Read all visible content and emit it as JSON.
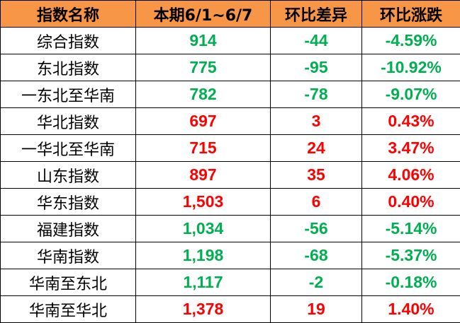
{
  "colors": {
    "header_bg": "#F79646",
    "up": "#FF0000",
    "down": "#00B050"
  },
  "headers": [
    "指数名称",
    "本期6/1~6/7",
    "环比差异",
    "环比涨跌"
  ],
  "rows": [
    {
      "name": "综合指数",
      "value": "914",
      "diff": "-44",
      "pct": "-4.59%",
      "trend": "down"
    },
    {
      "name": "东北指数",
      "value": "775",
      "diff": "-95",
      "pct": "-10.92%",
      "trend": "down"
    },
    {
      "name": "一东北至华南",
      "value": "782",
      "diff": "-78",
      "pct": "-9.07%",
      "trend": "down"
    },
    {
      "name": "华北指数",
      "value": "697",
      "diff": "3",
      "pct": "0.43%",
      "trend": "up"
    },
    {
      "name": "一华北至华南",
      "value": "715",
      "diff": "24",
      "pct": "3.47%",
      "trend": "up"
    },
    {
      "name": "山东指数",
      "value": "897",
      "diff": "35",
      "pct": "4.06%",
      "trend": "up"
    },
    {
      "name": "华东指数",
      "value": "1,503",
      "diff": "6",
      "pct": "0.40%",
      "trend": "up"
    },
    {
      "name": "福建指数",
      "value": "1,034",
      "diff": "-56",
      "pct": "-5.14%",
      "trend": "down"
    },
    {
      "name": "华南指数",
      "value": "1,198",
      "diff": "-68",
      "pct": "-5.37%",
      "trend": "down"
    },
    {
      "name": "华南至东北",
      "value": "1,117",
      "diff": "-2",
      "pct": "-0.18%",
      "trend": "down"
    },
    {
      "name": "华南至华北",
      "value": "1,378",
      "diff": "19",
      "pct": "1.40%",
      "trend": "up"
    }
  ]
}
